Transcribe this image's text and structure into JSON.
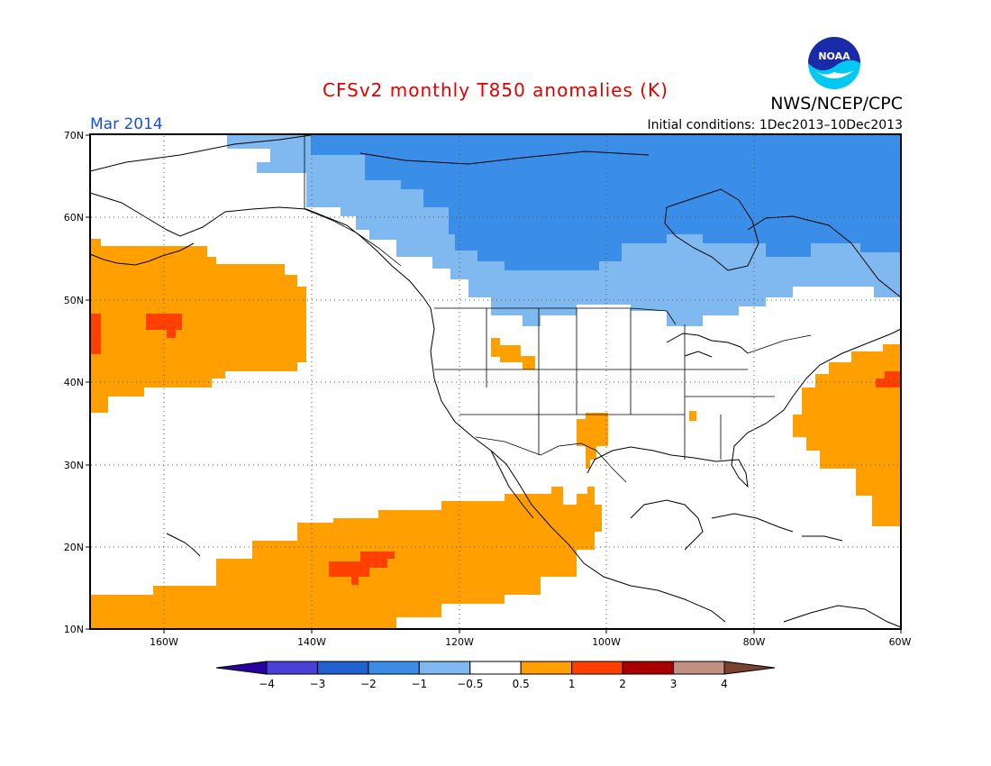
{
  "title": "CFSv2 monthly T850 anomalies (K)",
  "agency": "NWS/NCEP/CPC",
  "logo_text": "NOAA",
  "valid_month": "Mar 2014",
  "initial_conditions": "Initial conditions: 1Dec2013–10Dec2013",
  "axes": {
    "lat_labels": [
      "70N",
      "60N",
      "50N",
      "40N",
      "30N",
      "20N",
      "10N"
    ],
    "lon_labels": [
      "160W",
      "140W",
      "120W",
      "100W",
      "80W",
      "60W"
    ]
  },
  "legend": {
    "colors": [
      "#2a00a0",
      "#4a40d8",
      "#2060d0",
      "#3a8ee8",
      "#80b8f0",
      "#ffffff",
      "#ffa000",
      "#ff4000",
      "#a80000",
      "#c09080",
      "#7a4030"
    ],
    "labels": [
      "−4",
      "−3",
      "−2",
      "−1",
      "−0.5",
      "0.5",
      "1",
      "2",
      "3",
      "4"
    ]
  },
  "colors": {
    "title": "#e00000",
    "month": "#1a4fd6",
    "warm_1": "#ffa000",
    "warm_2": "#ff4000",
    "cold_1": "#80b8f0",
    "cold_2": "#3a8ee8"
  }
}
